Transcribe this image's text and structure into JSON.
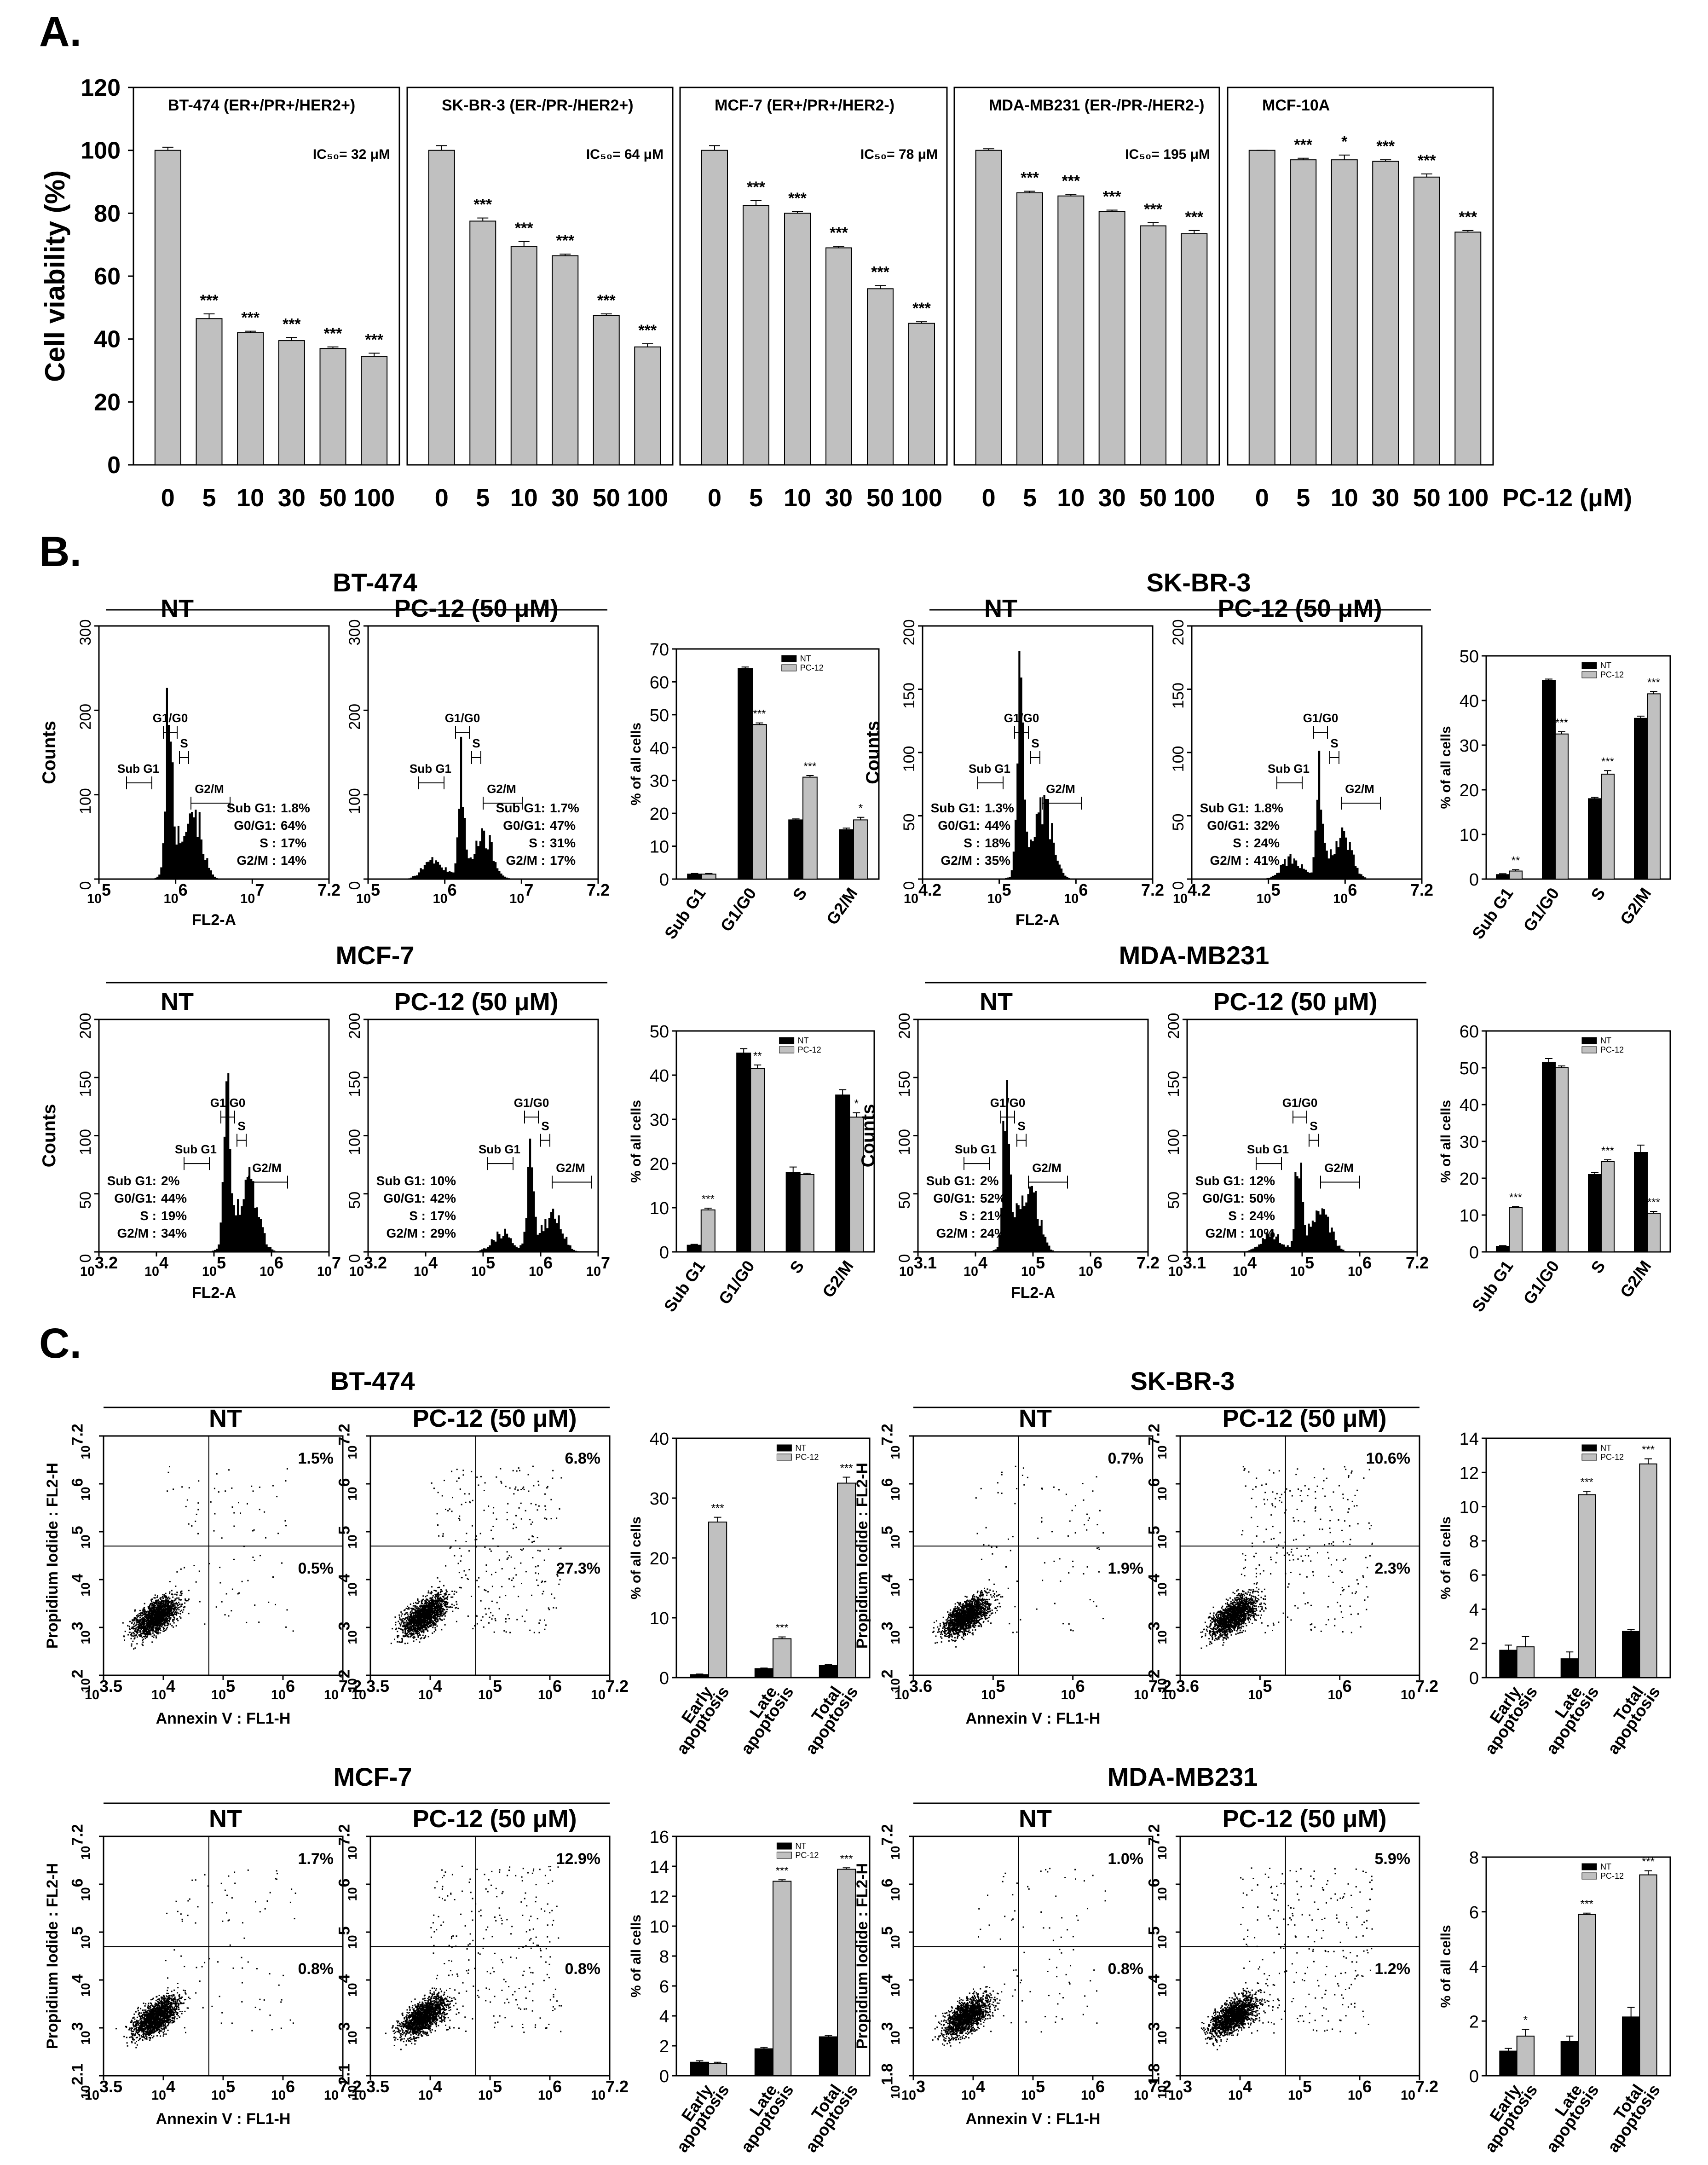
{
  "panels": {
    "A": "A.",
    "B": "B.",
    "C": "C."
  },
  "chart_data": [
    {
      "id": "viability",
      "type": "bar",
      "panel": "A",
      "ylabel": "Cell viability (%)",
      "ylim": [
        0,
        120
      ],
      "yticks": [
        0,
        20,
        40,
        60,
        80,
        100,
        120
      ],
      "categories": [
        "0",
        "5",
        "10",
        "30",
        "50",
        "100"
      ],
      "xlabel": "PC-12 (μM)",
      "subplots": [
        {
          "title": "BT-474 (ER+/PR+/HER2+)",
          "ic50": "IC₅₀= 32 μM",
          "values": [
            100,
            46.5,
            42,
            39.5,
            37,
            34.5
          ],
          "err": [
            1,
            1.5,
            0.5,
            1,
            0.5,
            1
          ],
          "sig": [
            "",
            "***",
            "***",
            "***",
            "***",
            "***"
          ]
        },
        {
          "title": "SK-BR-3 (ER-/PR-/HER2+)",
          "ic50": "IC₅₀= 64 μM",
          "values": [
            100,
            77.5,
            69.5,
            66.5,
            47.5,
            37.5
          ],
          "err": [
            1.5,
            1,
            1.5,
            0.5,
            0.5,
            1
          ],
          "sig": [
            "",
            "***",
            "***",
            "***",
            "***",
            "***"
          ]
        },
        {
          "title": "MCF-7 (ER+/PR+/HER2-)",
          "ic50": "IC₅₀= 78 μM",
          "values": [
            100,
            82.5,
            80,
            69,
            56,
            45
          ],
          "err": [
            1.5,
            1.5,
            0.5,
            0.5,
            1,
            0.5
          ],
          "sig": [
            "",
            "***",
            "***",
            "***",
            "***",
            "***"
          ]
        },
        {
          "title": "MDA-MB231 (ER-/PR-/HER2-)",
          "ic50": "IC₅₀= 195 μM",
          "values": [
            100,
            86.5,
            85.5,
            80.5,
            76,
            73.5
          ],
          "err": [
            0.5,
            0.5,
            0.5,
            0.5,
            1,
            1
          ],
          "sig": [
            "",
            "***",
            "***",
            "***",
            "***",
            "***"
          ]
        },
        {
          "title": "MCF-10A",
          "ic50": "",
          "values": [
            100,
            97,
            97,
            96.5,
            91.5,
            74
          ],
          "err": [
            0,
            0.5,
            1.5,
            0.5,
            1,
            0.5
          ],
          "sig": [
            "",
            "***",
            "*",
            "***",
            "***",
            "***"
          ]
        }
      ]
    },
    {
      "id": "cellcycle",
      "type": "histogram",
      "panel": "B",
      "ylabel": "Counts",
      "xlabel": "FL2-A",
      "conditions": [
        "NT",
        "PC-12 (50 μM)"
      ],
      "lines": [
        "Sub G1:",
        "G0/G1:",
        "S :",
        "G2/M :"
      ],
      "cells": [
        {
          "name": "BT-474",
          "ylim": [
            0,
            300
          ],
          "yticks": [
            "0",
            "100",
            "200",
            "300"
          ],
          "xticks": [
            {
              "base": "10",
              "exp": "5"
            },
            {
              "base": "10",
              "exp": "6"
            },
            {
              "base": "10",
              "exp": "7"
            },
            {
              "base": "",
              "exp": "7.2"
            }
          ],
          "gates": [
            "Sub G1",
            "G1/G0",
            "S",
            "G2/M"
          ],
          "nt": [
            "1.8%",
            "64%",
            "17%",
            "14%"
          ],
          "pc": [
            "1.7%",
            "47%",
            "31%",
            "17%"
          ]
        },
        {
          "name": "SK-BR-3",
          "ylim": [
            0,
            200
          ],
          "yticks": [
            "0",
            "50",
            "100",
            "150",
            "200"
          ],
          "xticks": [
            {
              "base": "10",
              "exp": "4.2"
            },
            {
              "base": "10",
              "exp": "5"
            },
            {
              "base": "10",
              "exp": "6"
            },
            {
              "base": "",
              "exp": "7.2"
            }
          ],
          "gates": [
            "Sub G1",
            "G1/G0",
            "S",
            "G2/M"
          ],
          "nt": [
            "1.3%",
            "44%",
            "18%",
            "35%"
          ],
          "pc": [
            "1.8%",
            "32%",
            "24%",
            "41%"
          ]
        },
        {
          "name": "MCF-7",
          "ylim": [
            0,
            200
          ],
          "yticks": [
            "0",
            "50",
            "100",
            "150",
            "200"
          ],
          "xticks": [
            {
              "base": "10",
              "exp": "3.2"
            },
            {
              "base": "10",
              "exp": "4"
            },
            {
              "base": "10",
              "exp": "5"
            },
            {
              "base": "10",
              "exp": "6"
            },
            {
              "base": "10",
              "exp": "7"
            }
          ],
          "gates": [
            "Sub G1",
            "G1/G0",
            "S",
            "G2/M"
          ],
          "nt": [
            "2%",
            "44%",
            "19%",
            "34%"
          ],
          "pc": [
            "10%",
            "42%",
            "17%",
            "29%"
          ]
        },
        {
          "name": "MDA-MB231",
          "ylim": [
            0,
            200
          ],
          "yticks": [
            "0",
            "50",
            "100",
            "150",
            "200"
          ],
          "xticks": [
            {
              "base": "10",
              "exp": "3.1"
            },
            {
              "base": "10",
              "exp": "4"
            },
            {
              "base": "10",
              "exp": "5"
            },
            {
              "base": "10",
              "exp": "6"
            },
            {
              "base": "",
              "exp": "7.2"
            }
          ],
          "gates": [
            "Sub G1",
            "G1/G0",
            "S",
            "G2/M"
          ],
          "nt": [
            "2%",
            "52%",
            "21%",
            "24%"
          ],
          "pc": [
            "12%",
            "50%",
            "24%",
            "10%"
          ]
        }
      ]
    },
    {
      "id": "cellcycle_bars",
      "type": "bar",
      "panel": "B",
      "ylabel": "% of all cells",
      "categories": [
        "Sub G1",
        "G1/G0",
        "S",
        "G2/M"
      ],
      "legend": [
        "NT",
        "PC-12"
      ],
      "subplots": [
        {
          "ylim": [
            0,
            70
          ],
          "yticks": [
            0,
            10,
            20,
            30,
            40,
            50,
            60,
            70
          ],
          "nt": [
            1.5,
            64,
            18,
            15
          ],
          "pc": [
            1.5,
            47,
            31,
            18
          ],
          "err_nt": [
            0.2,
            0.5,
            0.3,
            0.5
          ],
          "err_pc": [
            0.2,
            0.5,
            0.5,
            0.8
          ],
          "sig": [
            "",
            "***",
            "***",
            "*"
          ]
        },
        {
          "ylim": [
            0,
            50
          ],
          "yticks": [
            0,
            10,
            20,
            30,
            40,
            50
          ],
          "nt": [
            1,
            44.5,
            18,
            36
          ],
          "pc": [
            1.8,
            32.5,
            23.5,
            41.5
          ],
          "err_nt": [
            0.2,
            0.3,
            0.3,
            0.5
          ],
          "err_pc": [
            0.3,
            0.5,
            0.8,
            0.5
          ],
          "sig": [
            "**",
            "***",
            "***",
            "***"
          ]
        },
        {
          "ylim": [
            0,
            50
          ],
          "yticks": [
            0,
            10,
            20,
            30,
            40,
            50
          ],
          "nt": [
            1.5,
            45,
            18,
            35.5
          ],
          "pc": [
            9.5,
            41.5,
            17.5,
            30.5
          ],
          "err_nt": [
            0.2,
            1,
            1.2,
            1.2
          ],
          "err_pc": [
            0.4,
            0.8,
            0.3,
            1
          ],
          "sig": [
            "***",
            "**",
            "",
            "*"
          ]
        },
        {
          "ylim": [
            0,
            60
          ],
          "yticks": [
            0,
            10,
            20,
            30,
            40,
            50,
            60
          ],
          "nt": [
            1.5,
            51.5,
            21,
            27
          ],
          "pc": [
            12,
            50,
            24.5,
            10.5
          ],
          "err_nt": [
            0.2,
            1,
            0.5,
            2
          ],
          "err_pc": [
            0.3,
            0.5,
            0.5,
            0.5
          ],
          "sig": [
            "***",
            "",
            "***",
            "***"
          ]
        }
      ]
    },
    {
      "id": "apoptosis",
      "type": "scatter",
      "panel": "C",
      "ylabel": "Propidium Iodide : FL2-H",
      "xlabel": "Annexin V : FL1-H",
      "conditions": [
        "NT",
        "PC-12 (50 μM)"
      ],
      "cells": [
        {
          "name": "BT-474",
          "xticks": [
            {
              "base": "10",
              "exp": "3.5"
            },
            {
              "base": "10",
              "exp": "4"
            },
            {
              "base": "10",
              "exp": "5"
            },
            {
              "base": "10",
              "exp": "6"
            },
            {
              "base": "10",
              "exp": "7.2"
            }
          ],
          "yticks": [
            {
              "base": "10",
              "exp": "2"
            },
            {
              "base": "10",
              "exp": "3"
            },
            {
              "base": "10",
              "exp": "4"
            },
            {
              "base": "10",
              "exp": "5"
            },
            {
              "base": "10",
              "exp": "6"
            },
            {
              "base": "10",
              "exp": "7.2"
            }
          ],
          "nt_ur": "1.5%",
          "nt_lr": "0.5%",
          "pc_ur": "6.8%",
          "pc_lr": "27.3%"
        },
        {
          "name": "SK-BR-3",
          "xticks": [
            {
              "base": "10",
              "exp": "3.6"
            },
            {
              "base": "10",
              "exp": "5"
            },
            {
              "base": "10",
              "exp": "6"
            },
            {
              "base": "10",
              "exp": "7.2"
            }
          ],
          "yticks": [
            {
              "base": "10",
              "exp": "2"
            },
            {
              "base": "10",
              "exp": "3"
            },
            {
              "base": "10",
              "exp": "4"
            },
            {
              "base": "10",
              "exp": "5"
            },
            {
              "base": "10",
              "exp": "6"
            },
            {
              "base": "10",
              "exp": "7.2"
            }
          ],
          "nt_ur": "0.7%",
          "nt_lr": "1.9%",
          "pc_ur": "10.6%",
          "pc_lr": "2.3%"
        },
        {
          "name": "MCF-7",
          "xticks": [
            {
              "base": "10",
              "exp": "3.5"
            },
            {
              "base": "10",
              "exp": "4"
            },
            {
              "base": "10",
              "exp": "5"
            },
            {
              "base": "10",
              "exp": "6"
            },
            {
              "base": "10",
              "exp": "7.2"
            }
          ],
          "yticks": [
            {
              "base": "10",
              "exp": "2.1"
            },
            {
              "base": "10",
              "exp": "3"
            },
            {
              "base": "10",
              "exp": "4"
            },
            {
              "base": "10",
              "exp": "5"
            },
            {
              "base": "10",
              "exp": "6"
            },
            {
              "base": "10",
              "exp": "7.2"
            }
          ],
          "nt_ur": "1.7%",
          "nt_lr": "0.8%",
          "pc_ur": "12.9%",
          "pc_lr": "0.8%"
        },
        {
          "name": "MDA-MB231",
          "xticks": [
            {
              "base": "10",
              "exp": "3"
            },
            {
              "base": "10",
              "exp": "4"
            },
            {
              "base": "10",
              "exp": "5"
            },
            {
              "base": "10",
              "exp": "6"
            },
            {
              "base": "10",
              "exp": "7.2"
            }
          ],
          "yticks": [
            {
              "base": "10",
              "exp": "1.8"
            },
            {
              "base": "10",
              "exp": "3"
            },
            {
              "base": "10",
              "exp": "4"
            },
            {
              "base": "10",
              "exp": "5"
            },
            {
              "base": "10",
              "exp": "6"
            },
            {
              "base": "10",
              "exp": "7.2"
            }
          ],
          "nt_ur": "1.0%",
          "nt_lr": "0.8%",
          "pc_ur": "5.9%",
          "pc_lr": "1.2%"
        }
      ]
    },
    {
      "id": "apoptosis_bars",
      "type": "bar",
      "panel": "C",
      "ylabel": "% of all cells",
      "categories": [
        [
          "Early",
          "apoptosis"
        ],
        [
          "Late",
          "apoptosis"
        ],
        [
          "Total",
          "apoptosis"
        ]
      ],
      "legend": [
        "NT",
        "PC-12"
      ],
      "subplots": [
        {
          "ylim": [
            0,
            40
          ],
          "yticks": [
            0,
            10,
            20,
            30,
            40
          ],
          "nt": [
            0.5,
            1.5,
            2
          ],
          "pc": [
            26,
            6.5,
            32.5
          ],
          "err_nt": [
            0.1,
            0.1,
            0.2
          ],
          "err_pc": [
            0.8,
            0.3,
            1
          ],
          "sig": [
            "***",
            "***",
            "***"
          ]
        },
        {
          "ylim": [
            0,
            14
          ],
          "yticks": [
            0,
            2,
            4,
            6,
            8,
            10,
            12,
            14
          ],
          "nt": [
            1.6,
            1.1,
            2.7
          ],
          "pc": [
            1.8,
            10.7,
            12.5
          ],
          "err_nt": [
            0.3,
            0.4,
            0.1
          ],
          "err_pc": [
            0.6,
            0.2,
            0.3
          ],
          "sig": [
            "",
            "***",
            "***"
          ]
        },
        {
          "ylim": [
            0,
            16
          ],
          "yticks": [
            0,
            2,
            4,
            6,
            8,
            10,
            12,
            14,
            16
          ],
          "nt": [
            0.9,
            1.8,
            2.6
          ],
          "pc": [
            0.8,
            13,
            13.8
          ],
          "err_nt": [
            0.1,
            0.1,
            0.1
          ],
          "err_pc": [
            0.1,
            0.1,
            0.1
          ],
          "sig": [
            "",
            "***",
            "***"
          ]
        },
        {
          "ylim": [
            0,
            8
          ],
          "yticks": [
            0,
            2,
            4,
            6,
            8
          ],
          "nt": [
            0.9,
            1.25,
            2.15
          ],
          "pc": [
            1.45,
            5.9,
            7.35
          ],
          "err_nt": [
            0.1,
            0.2,
            0.35
          ],
          "err_pc": [
            0.25,
            0.05,
            0.15
          ],
          "sig": [
            "*",
            "***",
            "***"
          ]
        }
      ]
    }
  ]
}
